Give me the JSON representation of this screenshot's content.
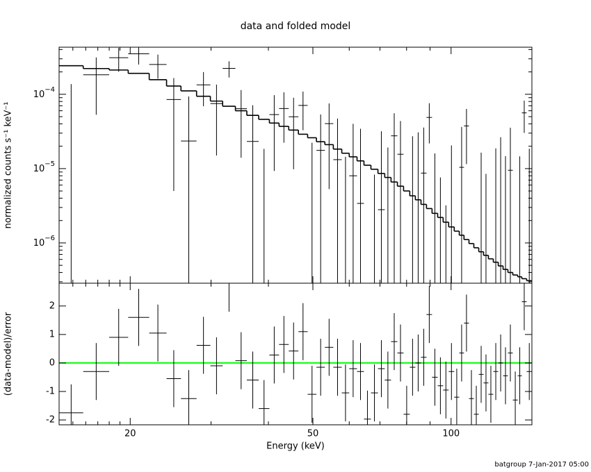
{
  "chart_data": {
    "type": "spectrum",
    "title": "data and folded model",
    "xlabel": "Energy (keV)",
    "xlog": true,
    "xlim": [
      14,
      150
    ],
    "xticks": [
      20,
      50,
      100
    ],
    "xminorticks": [
      15,
      16,
      17,
      18,
      19,
      30,
      40,
      60,
      70,
      80,
      90
    ],
    "bins": [
      14,
      15.8,
      18.0,
      19.8,
      22.0,
      24.0,
      25.8,
      27.9,
      29.9,
      31.8,
      33.9,
      35.9,
      38.1,
      40.2,
      42.2,
      44.3,
      46.5,
      48.7,
      50.9,
      53.1,
      55.4,
      57.8,
      60.0,
      62.4,
      64.6,
      66.9,
      69.3,
      71.7,
      74.0,
      76.4,
      78.8,
      81.3,
      83.6,
      86.0,
      88.4,
      90.9,
      93.5,
      96.1,
      98.8,
      101.6,
      104.2,
      106.7,
      109.4,
      112.1,
      114.9,
      117.7,
      120.6,
      123.6,
      126.7,
      129.8,
      133.0,
      136.3,
      139.7,
      142.6,
      146.1,
      150
    ],
    "panels": [
      {
        "ylabel": "normalized counts s⁻¹ keV⁻¹",
        "ylog": true,
        "ylim": [
          2.87e-07,
          0.00043
        ],
        "yticks": [
          {
            "value": 1e-06,
            "label": "10",
            "exponent": "−6"
          },
          {
            "value": 1e-05,
            "label": "10",
            "exponent": "−5"
          },
          {
            "value": 0.0001,
            "label": "10",
            "exponent": "−4"
          }
        ],
        "yminorticks": [
          3e-07,
          4e-07,
          5e-07,
          6e-07,
          7e-07,
          8e-07,
          9e-07,
          2e-06,
          3e-06,
          4e-06,
          5e-06,
          6e-06,
          7e-06,
          8e-06,
          9e-06,
          2e-05,
          3e-05,
          4e-05,
          5e-05,
          6e-05,
          7e-05,
          8e-05,
          9e-05,
          0.0002,
          0.0003,
          0.0004
        ],
        "series": [
          {
            "style": "points",
            "color": "#000000",
            "values": [
              -3e-06,
              0.000183,
              0.000311,
              0.000351,
              0.000252,
              8.5e-05,
              2.35e-05,
              0.000134,
              7.5e-05,
              0.000223,
              6.4e-05,
              2.32e-05,
              -2.76e-05,
              5.33e-05,
              6.43e-05,
              4.98e-05,
              7.08e-05,
              -1.47e-05,
              1.76e-05,
              4.03e-05,
              1.32e-05,
              -1.86e-05,
              8e-06,
              3.4e-06,
              -4.8e-05,
              -2.17e-05,
              2.8e-06,
              -9.8e-06,
              2.76e-05,
              1.56e-05,
              -4.36e-05,
              2.5e-07,
              3.8e-06,
              8.7e-06,
              4.88e-05,
              -1.1e-05,
              -1.94e-05,
              -2.38e-05,
              -6.5e-06,
              -3.1e-05,
              1.04e-05,
              3.75e-05,
              -3.15e-05,
              -4.59e-05,
              -9.6e-06,
              -1.75e-05,
              -2.8e-05,
              -7.3e-06,
              4.9e-07,
              -1.13e-05,
              9.5e-06,
              -3.34e-05,
              -1.14e-05,
              5.62e-05,
              -7.5e-06
            ],
            "errors": [
              0.00014,
              0.00013,
              0.00011,
              0.0001,
              9e-05,
              8e-05,
              7e-05,
              6.5e-05,
              6e-05,
              5.5e-05,
              5e-05,
              4.8e-05,
              4.6e-05,
              4.4e-05,
              4.2e-05,
              4e-05,
              3.8e-05,
              3.7e-05,
              3.6e-05,
              3.5e-05,
              3.4e-05,
              3.3e-05,
              3.2e-05,
              3.1e-05,
              3e-05,
              3e-05,
              2.9e-05,
              2.9e-05,
              2.8e-05,
              2.8e-05,
              2.7e-05,
              2.7e-05,
              2.7e-05,
              2.7e-05,
              2.7e-05,
              2.7e-05,
              2.7e-05,
              2.7e-05,
              2.7e-05,
              2.7e-05,
              2.6e-05,
              2.6e-05,
              2.6e-05,
              2.6e-05,
              2.6e-05,
              2.6e-05,
              2.6e-05,
              2.6e-05,
              2.6e-05,
              2.6e-05,
              2.6e-05,
              2.6e-05,
              2.6e-05,
              2.6e-05,
              2.6e-05
            ]
          },
          {
            "style": "step",
            "color": "#000000",
            "values": [
              0.000242,
              0.000222,
              0.000212,
              0.000191,
              0.000157,
              0.000129,
              0.000111,
              9.4e-05,
              8.1e-05,
              6.9e-05,
              6e-05,
              5.2e-05,
              4.6e-05,
              4.1e-05,
              3.7e-05,
              3.3e-05,
              2.9e-05,
              2.6e-05,
              2.3e-05,
              2.1e-05,
              1.83e-05,
              1.61e-05,
              1.44e-05,
              1.27e-05,
              1.11e-05,
              9.8e-06,
              8.6e-06,
              7.6e-06,
              6.6e-06,
              5.8e-06,
              5e-06,
              4.3e-06,
              3.8e-06,
              3.3e-06,
              2.9e-06,
              2.5e-06,
              2.2e-06,
              1.9e-06,
              1.64e-06,
              1.44e-06,
              1.27e-06,
              1.11e-06,
              9.8e-07,
              8.6e-07,
              7.6e-07,
              6.8e-07,
              6.1e-07,
              5.5e-07,
              4.9e-07,
              4.4e-07,
              4e-07,
              3.7e-07,
              3.5e-07,
              3.3e-07,
              3.1e-07
            ]
          }
        ]
      },
      {
        "ylabel": "(data-model)/error",
        "ylog": false,
        "ylim": [
          -2.17,
          2.8
        ],
        "yticks": [
          -2,
          -1,
          0,
          1,
          2
        ],
        "reference_line": {
          "value": 0,
          "color": "#00ff00"
        },
        "series": [
          {
            "style": "points",
            "color": "#000000",
            "values": [
              -1.75,
              -0.3,
              0.9,
              1.6,
              1.05,
              -0.55,
              -1.25,
              0.62,
              -0.1,
              2.8,
              0.08,
              -0.6,
              -1.6,
              0.28,
              0.65,
              0.42,
              1.1,
              -1.1,
              -0.15,
              0.55,
              -0.15,
              -1.05,
              -0.2,
              -0.3,
              -1.97,
              -1.05,
              -0.2,
              -0.6,
              0.75,
              0.35,
              -1.8,
              -0.15,
              0.0,
              0.2,
              1.7,
              -0.5,
              -0.8,
              -0.95,
              -0.3,
              -1.2,
              0.35,
              1.4,
              -1.25,
              -1.8,
              -0.4,
              -0.7,
              -1.1,
              -0.3,
              0.0,
              -0.45,
              0.35,
              -1.3,
              -0.45,
              2.15,
              -0.3
            ],
            "errors": [
              1,
              1,
              1,
              1,
              1,
              1,
              1,
              1,
              1,
              1,
              1,
              1,
              1,
              1,
              1,
              1,
              1,
              1,
              1,
              1,
              1,
              1,
              1,
              1,
              1,
              1,
              1,
              1,
              1,
              1,
              1,
              1,
              1,
              1,
              1,
              1,
              1,
              1,
              1,
              1,
              1,
              1,
              1,
              1,
              1,
              1,
              1,
              1,
              1,
              1,
              1,
              1,
              1,
              1,
              1
            ]
          }
        ]
      }
    ],
    "footer": "batgroup  7-Jan-2017 05:00"
  }
}
